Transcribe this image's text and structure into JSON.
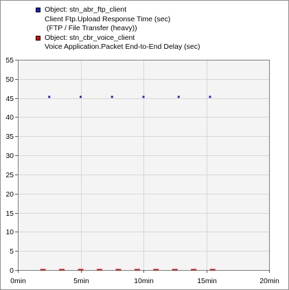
{
  "legend": {
    "series0": {
      "object": "Object: stn_abr_ftp_client",
      "line1": "Client Ftp.Upload Response Time (sec)",
      "line2": " (FTP / File Transfer (heavy))",
      "color": "#1f1fc8"
    },
    "series1": {
      "object": "Object: stn_cbr_voice_client",
      "line1": "Voice Application.Packet End-to-End Delay (sec)",
      "color": "#d01010"
    }
  },
  "chart_data": {
    "type": "scatter",
    "x_unit": "min",
    "xlim": [
      0,
      20
    ],
    "ylim": [
      0,
      55
    ],
    "x_ticks": [
      "0min",
      "5min",
      "10min",
      "15min",
      "20min"
    ],
    "y_ticks": [
      "0",
      "5",
      "10",
      "15",
      "20",
      "25",
      "30",
      "35",
      "40",
      "45",
      "50",
      "55"
    ],
    "grid": true,
    "legend_position": "top-left",
    "series": [
      {
        "color": "#1f1fc8",
        "marker": "square",
        "x": [
          2.5,
          5.0,
          7.5,
          10.0,
          12.8,
          15.3
        ],
        "y": [
          45.3,
          45.3,
          45.3,
          45.3,
          45.3,
          45.3
        ]
      },
      {
        "color": "#d01010",
        "marker": "dash",
        "x": [
          2.0,
          3.5,
          5.0,
          6.5,
          8.0,
          9.5,
          11.0,
          12.5,
          14.0,
          15.5
        ],
        "y": [
          0.1,
          0.1,
          0.1,
          0.1,
          0.1,
          0.1,
          0.1,
          0.1,
          0.1,
          0.1
        ]
      }
    ]
  }
}
